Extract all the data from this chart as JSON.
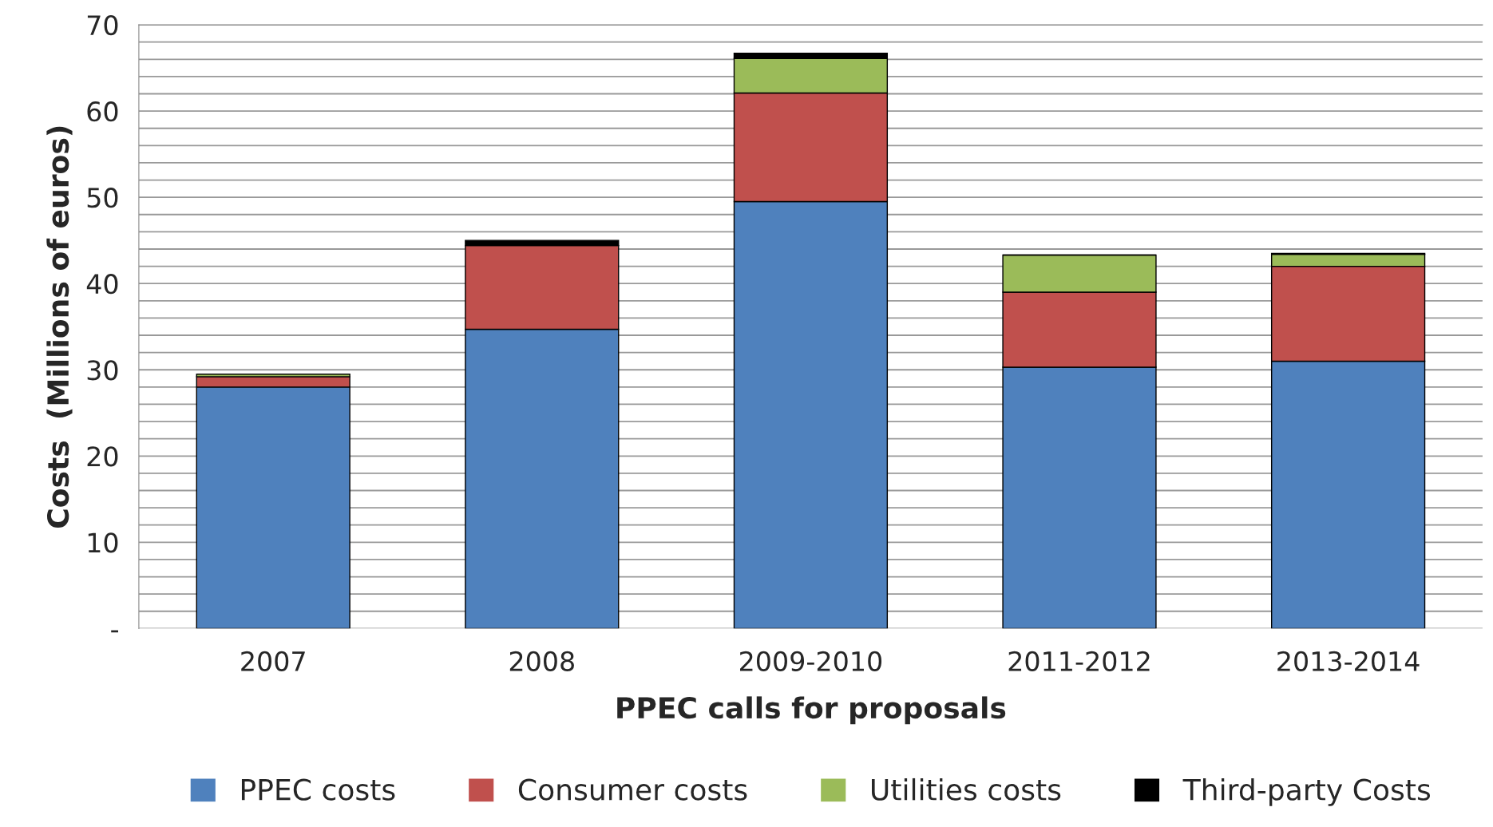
{
  "chart_data": {
    "type": "bar",
    "stacked": true,
    "xlabel": "PPEC calls for proposals",
    "ylabel": "Costs  (Millions of euros)",
    "categories": [
      "2007",
      "2008",
      "2009-2010",
      "2011-2012",
      "2013-2014"
    ],
    "series": [
      {
        "name": "PPEC costs",
        "color": "#4f81bd",
        "values": [
          28.0,
          34.7,
          49.5,
          30.3,
          31.0
        ]
      },
      {
        "name": "Consumer costs",
        "color": "#c0504d",
        "values": [
          1.2,
          9.7,
          12.6,
          8.7,
          11.0
        ]
      },
      {
        "name": "Utilities costs",
        "color": "#9bbb59",
        "values": [
          0.3,
          null,
          4.0,
          4.3,
          1.4
        ]
      },
      {
        "name": "Third-party Costs",
        "color": "#000000",
        "values": [
          0.0,
          0.6,
          0.6,
          0.0,
          0.1
        ]
      }
    ],
    "ylim": [
      0,
      70
    ],
    "yticks": [
      {
        "value": 0,
        "label": "-"
      },
      {
        "value": 2,
        "label": null
      },
      {
        "value": 4,
        "label": null
      },
      {
        "value": 6,
        "label": null
      },
      {
        "value": 8,
        "label": null
      },
      10,
      {
        "value": 12,
        "label": null
      },
      {
        "value": 14,
        "label": null
      },
      {
        "value": 16,
        "label": null
      },
      {
        "value": 18,
        "label": null
      },
      20,
      {
        "value": 22,
        "label": null
      },
      {
        "value": 24,
        "label": null
      },
      {
        "value": 26,
        "label": null
      },
      {
        "value": 28,
        "label": null
      },
      30,
      {
        "value": 32,
        "label": null
      },
      {
        "value": 34,
        "label": null
      },
      {
        "value": 36,
        "label": null
      },
      {
        "value": 38,
        "label": null
      },
      40,
      {
        "value": 42,
        "label": null
      },
      {
        "value": 44,
        "label": null
      },
      {
        "value": 46,
        "label": null
      },
      {
        "value": 48,
        "label": null
      },
      50,
      {
        "value": 52,
        "label": null
      },
      {
        "value": 54,
        "label": null
      },
      {
        "value": 56,
        "label": null
      },
      {
        "value": 58,
        "label": null
      },
      60,
      {
        "value": 62,
        "label": null
      },
      {
        "value": 64,
        "label": null
      },
      {
        "value": 66,
        "label": null
      },
      {
        "value": 68,
        "label": null
      },
      70
    ],
    "grid": "y",
    "legend": "bottom"
  }
}
